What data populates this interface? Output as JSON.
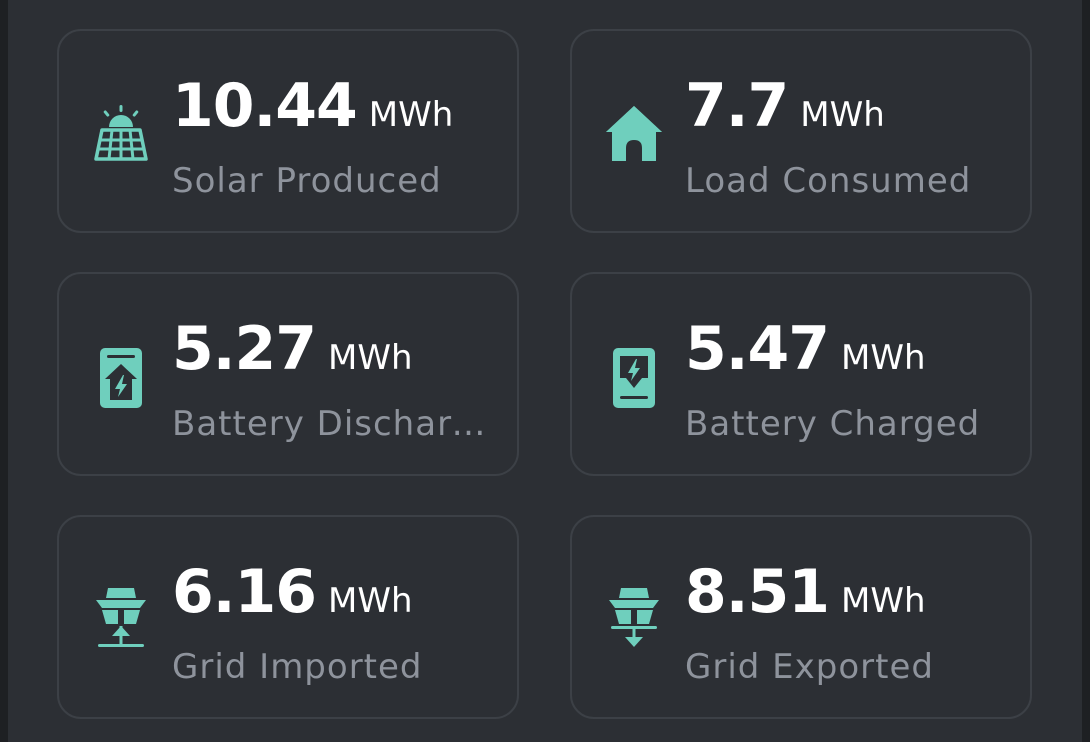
{
  "accent_color": "#6fcfbd",
  "cards": [
    {
      "icon": "solar-panel-icon",
      "value": "10.44",
      "unit": "MWh",
      "label": "Solar Produced"
    },
    {
      "icon": "home-icon",
      "value": "7.7",
      "unit": "MWh",
      "label": "Load Consumed"
    },
    {
      "icon": "battery-discharge-icon",
      "value": "5.27",
      "unit": "MWh",
      "label": "Battery Discharged"
    },
    {
      "icon": "battery-charge-icon",
      "value": "5.47",
      "unit": "MWh",
      "label": "Battery Charged"
    },
    {
      "icon": "grid-import-icon",
      "value": "6.16",
      "unit": "MWh",
      "label": "Grid Imported"
    },
    {
      "icon": "grid-export-icon",
      "value": "8.51",
      "unit": "MWh",
      "label": "Grid Exported"
    }
  ]
}
